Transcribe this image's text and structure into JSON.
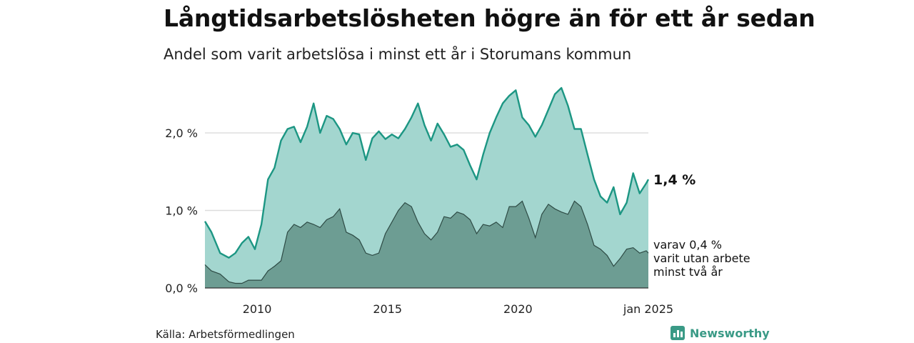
{
  "title": "Långtidsarbetslösheten högre än för ett år sedan",
  "subtitle": "Andel som varit arbetslösa i minst ett år i Storumans kommun",
  "source": "Källa: Arbetsförmedlingen",
  "brand": "Newsworthy",
  "colors": {
    "upper_fill": "#a3d6cf",
    "upper_line": "#1c9683",
    "lower_fill": "#6d9d93",
    "lower_line": "#2e4b45",
    "grid": "#dddddd"
  },
  "chart_data": {
    "type": "area",
    "x_start": "2008-01",
    "x_end": "2025-01",
    "ylim": [
      0,
      2.7
    ],
    "y_ticks": [
      {
        "value": 0,
        "label": "0,0 %"
      },
      {
        "value": 1,
        "label": "1,0 %"
      },
      {
        "value": 2,
        "label": "2,0 %"
      }
    ],
    "x_ticks": [
      {
        "value": "2010-01",
        "label": "2010"
      },
      {
        "value": "2015-01",
        "label": "2015"
      },
      {
        "value": "2020-01",
        "label": "2020"
      },
      {
        "value": "2025-01",
        "label": "jan 2025"
      }
    ],
    "series": [
      {
        "end_label": "1,4 %",
        "points": [
          [
            "2008-01",
            0.86
          ],
          [
            "2008-04",
            0.72
          ],
          [
            "2008-08",
            0.45
          ],
          [
            "2008-12",
            0.39
          ],
          [
            "2009-03",
            0.45
          ],
          [
            "2009-06",
            0.58
          ],
          [
            "2009-09",
            0.66
          ],
          [
            "2009-12",
            0.5
          ],
          [
            "2010-03",
            0.82
          ],
          [
            "2010-06",
            1.4
          ],
          [
            "2010-09",
            1.55
          ],
          [
            "2010-12",
            1.9
          ],
          [
            "2011-03",
            2.05
          ],
          [
            "2011-06",
            2.08
          ],
          [
            "2011-09",
            1.88
          ],
          [
            "2011-12",
            2.08
          ],
          [
            "2012-03",
            2.38
          ],
          [
            "2012-06",
            2.0
          ],
          [
            "2012-09",
            2.22
          ],
          [
            "2012-12",
            2.18
          ],
          [
            "2013-03",
            2.05
          ],
          [
            "2013-06",
            1.85
          ],
          [
            "2013-09",
            2.0
          ],
          [
            "2013-12",
            1.98
          ],
          [
            "2014-03",
            1.65
          ],
          [
            "2014-06",
            1.93
          ],
          [
            "2014-09",
            2.02
          ],
          [
            "2014-12",
            1.92
          ],
          [
            "2015-03",
            1.98
          ],
          [
            "2015-06",
            1.93
          ],
          [
            "2015-09",
            2.05
          ],
          [
            "2015-12",
            2.2
          ],
          [
            "2016-03",
            2.38
          ],
          [
            "2016-06",
            2.1
          ],
          [
            "2016-09",
            1.9
          ],
          [
            "2016-12",
            2.12
          ],
          [
            "2017-03",
            1.98
          ],
          [
            "2017-06",
            1.82
          ],
          [
            "2017-09",
            1.85
          ],
          [
            "2017-12",
            1.78
          ],
          [
            "2018-03",
            1.58
          ],
          [
            "2018-06",
            1.4
          ],
          [
            "2018-09",
            1.72
          ],
          [
            "2018-12",
            2.0
          ],
          [
            "2019-03",
            2.2
          ],
          [
            "2019-06",
            2.38
          ],
          [
            "2019-09",
            2.48
          ],
          [
            "2019-12",
            2.55
          ],
          [
            "2020-03",
            2.2
          ],
          [
            "2020-06",
            2.1
          ],
          [
            "2020-09",
            1.95
          ],
          [
            "2020-12",
            2.1
          ],
          [
            "2021-03",
            2.3
          ],
          [
            "2021-06",
            2.5
          ],
          [
            "2021-09",
            2.58
          ],
          [
            "2021-12",
            2.35
          ],
          [
            "2022-03",
            2.05
          ],
          [
            "2022-06",
            2.05
          ],
          [
            "2022-09",
            1.72
          ],
          [
            "2022-12",
            1.4
          ],
          [
            "2023-03",
            1.18
          ],
          [
            "2023-06",
            1.1
          ],
          [
            "2023-09",
            1.3
          ],
          [
            "2023-12",
            0.95
          ],
          [
            "2024-03",
            1.1
          ],
          [
            "2024-06",
            1.48
          ],
          [
            "2024-09",
            1.22
          ],
          [
            "2024-12",
            1.35
          ],
          [
            "2025-01",
            1.4
          ]
        ]
      },
      {
        "end_label": "varav 0,4 %\nvarit utan arbete\nminst två år",
        "points": [
          [
            "2008-01",
            0.3
          ],
          [
            "2008-04",
            0.22
          ],
          [
            "2008-08",
            0.18
          ],
          [
            "2008-12",
            0.08
          ],
          [
            "2009-03",
            0.06
          ],
          [
            "2009-06",
            0.06
          ],
          [
            "2009-09",
            0.1
          ],
          [
            "2009-12",
            0.1
          ],
          [
            "2010-03",
            0.1
          ],
          [
            "2010-06",
            0.22
          ],
          [
            "2010-09",
            0.28
          ],
          [
            "2010-12",
            0.35
          ],
          [
            "2011-03",
            0.72
          ],
          [
            "2011-06",
            0.82
          ],
          [
            "2011-09",
            0.78
          ],
          [
            "2011-12",
            0.85
          ],
          [
            "2012-03",
            0.82
          ],
          [
            "2012-06",
            0.78
          ],
          [
            "2012-09",
            0.88
          ],
          [
            "2012-12",
            0.92
          ],
          [
            "2013-03",
            1.02
          ],
          [
            "2013-06",
            0.72
          ],
          [
            "2013-09",
            0.68
          ],
          [
            "2013-12",
            0.62
          ],
          [
            "2014-03",
            0.45
          ],
          [
            "2014-06",
            0.42
          ],
          [
            "2014-09",
            0.45
          ],
          [
            "2014-12",
            0.7
          ],
          [
            "2015-03",
            0.85
          ],
          [
            "2015-06",
            1.0
          ],
          [
            "2015-09",
            1.1
          ],
          [
            "2015-12",
            1.05
          ],
          [
            "2016-03",
            0.85
          ],
          [
            "2016-06",
            0.7
          ],
          [
            "2016-09",
            0.62
          ],
          [
            "2016-12",
            0.72
          ],
          [
            "2017-03",
            0.92
          ],
          [
            "2017-06",
            0.9
          ],
          [
            "2017-09",
            0.98
          ],
          [
            "2017-12",
            0.95
          ],
          [
            "2018-03",
            0.88
          ],
          [
            "2018-06",
            0.7
          ],
          [
            "2018-09",
            0.82
          ],
          [
            "2018-12",
            0.8
          ],
          [
            "2019-03",
            0.85
          ],
          [
            "2019-06",
            0.78
          ],
          [
            "2019-09",
            1.05
          ],
          [
            "2019-12",
            1.05
          ],
          [
            "2020-03",
            1.12
          ],
          [
            "2020-06",
            0.9
          ],
          [
            "2020-09",
            0.65
          ],
          [
            "2020-12",
            0.95
          ],
          [
            "2021-03",
            1.08
          ],
          [
            "2021-06",
            1.02
          ],
          [
            "2021-09",
            0.98
          ],
          [
            "2021-12",
            0.95
          ],
          [
            "2022-03",
            1.12
          ],
          [
            "2022-06",
            1.05
          ],
          [
            "2022-09",
            0.82
          ],
          [
            "2022-12",
            0.55
          ],
          [
            "2023-03",
            0.5
          ],
          [
            "2023-06",
            0.42
          ],
          [
            "2023-09",
            0.28
          ],
          [
            "2023-12",
            0.38
          ],
          [
            "2024-03",
            0.5
          ],
          [
            "2024-06",
            0.52
          ],
          [
            "2024-09",
            0.45
          ],
          [
            "2024-12",
            0.48
          ],
          [
            "2025-01",
            0.45
          ]
        ]
      }
    ]
  }
}
